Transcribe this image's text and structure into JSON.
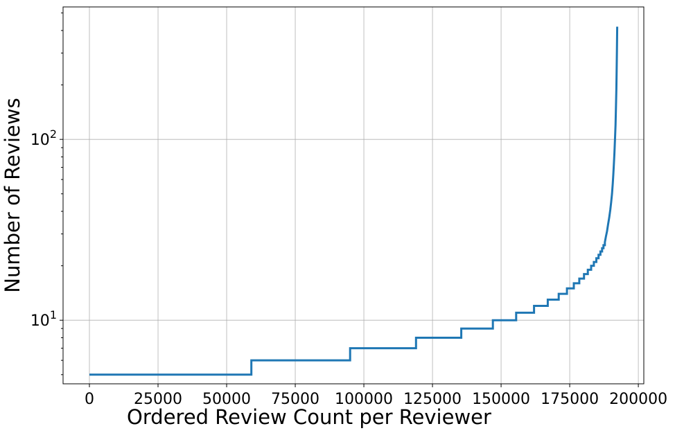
{
  "chart_data": {
    "type": "line",
    "xlabel": "Ordered Review Count per Reviewer",
    "ylabel": "Number of Reviews",
    "y_scale": "log",
    "grid": true,
    "xlim": [
      -9600,
      202000
    ],
    "ylim": [
      4.45,
      540
    ],
    "x_ticks": [
      0,
      25000,
      50000,
      75000,
      100000,
      125000,
      150000,
      175000,
      200000
    ],
    "x_tick_labels": [
      "0",
      "25000",
      "50000",
      "75000",
      "100000",
      "125000",
      "150000",
      "175000",
      "200000"
    ],
    "y_major_ticks": [
      10,
      100
    ],
    "y_major_tick_labels": [
      {
        "base": "10",
        "exp": "1"
      },
      {
        "base": "10",
        "exp": "2"
      }
    ],
    "line_color": "#1f77b4",
    "series": [
      {
        "x": [
          0,
          59000,
          59000,
          95000,
          95000,
          119000,
          119000,
          135500,
          135500,
          147000,
          147000,
          155500,
          155500,
          162000,
          162000,
          167000,
          167000,
          171000,
          171000,
          174000,
          174000,
          176500,
          176500,
          178500,
          178500,
          180200,
          180200,
          181600,
          181600,
          182800,
          182800,
          183800,
          183800,
          184700,
          184700,
          185500,
          185500,
          186200,
          186200,
          186800,
          186800,
          187300,
          187300,
          187800,
          187800,
          188200,
          188600,
          189000,
          189400,
          189800,
          190100,
          190400,
          190700,
          190900,
          191100,
          191300,
          191500,
          191700,
          191850,
          192000,
          192100,
          192200,
          192300
        ],
        "y": [
          5,
          5,
          6,
          6,
          7,
          7,
          8,
          8,
          9,
          9,
          10,
          10,
          11,
          11,
          12,
          12,
          13,
          13,
          14,
          14,
          15,
          15,
          16,
          16,
          17,
          17,
          18,
          18,
          19,
          19,
          20,
          20,
          21,
          21,
          22,
          22,
          23,
          23,
          24,
          24,
          25,
          25,
          26,
          26,
          27,
          29,
          31,
          34,
          37,
          41,
          45,
          50,
          57,
          64,
          73,
          84,
          100,
          120,
          150,
          190,
          240,
          310,
          420
        ]
      }
    ]
  }
}
